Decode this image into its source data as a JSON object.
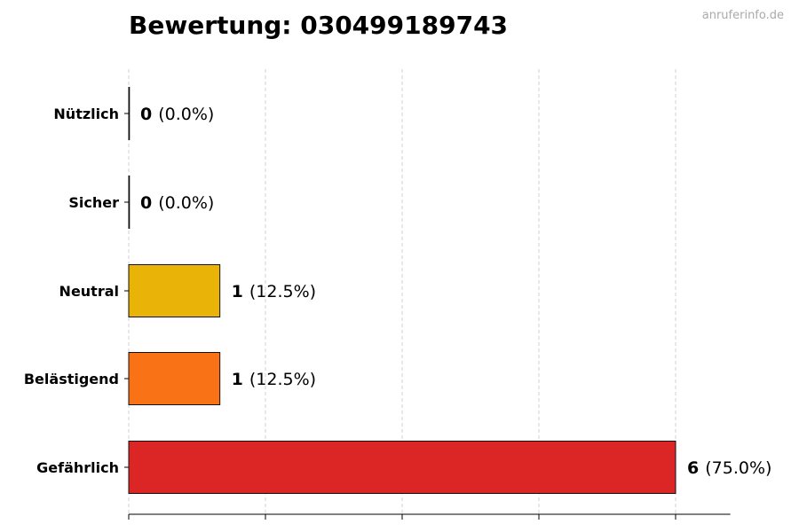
{
  "chart_data": {
    "type": "bar",
    "orientation": "horizontal",
    "title": "Bewertung: 030499189743",
    "categories": [
      "Nützlich",
      "Sicher",
      "Neutral",
      "Belästigend",
      "Gefährlich"
    ],
    "values": [
      0,
      0,
      1,
      1,
      6
    ],
    "value_labels": [
      "0",
      "0",
      "1",
      "1",
      "6"
    ],
    "percent_labels": [
      "(0.0%)",
      "(0.0%)",
      "(12.5%)",
      "(12.5%)",
      "(75.0%)"
    ],
    "colors": [
      "#16a34a",
      "#22c55e",
      "#eab308",
      "#f97316",
      "#dc2626"
    ],
    "xlim": [
      0,
      6.6
    ],
    "xticks": [
      0,
      1.5,
      3,
      4.5,
      6
    ],
    "grid": "vertical-dashed",
    "xlabel": "",
    "ylabel": ""
  },
  "watermark": "anruferinfo.de"
}
